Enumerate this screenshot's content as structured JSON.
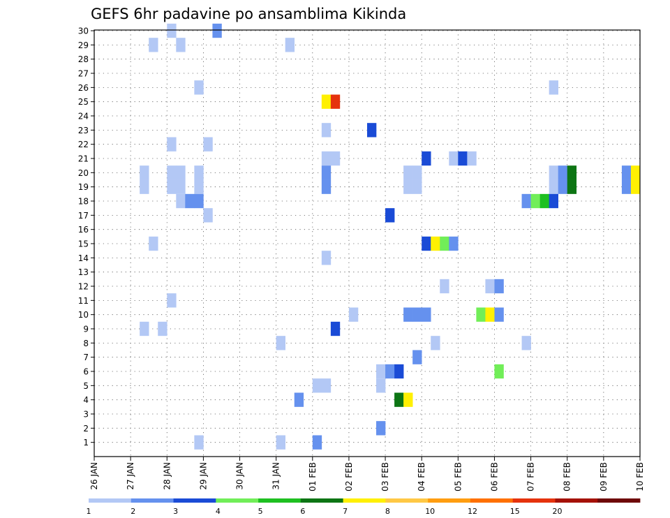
{
  "chart_data": {
    "type": "heatmap",
    "title": "GEFS 6hr padavine po ansamblima Kikinda",
    "xlabel": "",
    "ylabel": "",
    "x_ticks": [
      "26 JAN",
      "27 JAN",
      "28 JAN",
      "29 JAN",
      "30 JAN",
      "31 JAN",
      "01 FEB",
      "02 FEB",
      "03 FEB",
      "04 FEB",
      "05 FEB",
      "06 FEB",
      "07 FEB",
      "08 FEB",
      "09 FEB",
      "10 FEB"
    ],
    "y_ticks": [
      "1",
      "2",
      "3",
      "4",
      "5",
      "6",
      "7",
      "8",
      "9",
      "10",
      "11",
      "12",
      "13",
      "14",
      "15",
      "16",
      "17",
      "18",
      "19",
      "20",
      "21",
      "22",
      "23",
      "24",
      "25",
      "26",
      "27",
      "28",
      "29",
      "30"
    ],
    "x_range_days": [
      0,
      15
    ],
    "y_range": [
      0,
      30
    ],
    "grid": true,
    "color_scale": {
      "levels": [
        "1",
        "2",
        "3",
        "4",
        "5",
        "6",
        "7",
        "8",
        "10",
        "12",
        "15",
        "20"
      ],
      "colors": [
        "#b3c8f5",
        "#6591ee",
        "#1a4bd6",
        "#71ee58",
        "#1ec021",
        "#0d7514",
        "#fff002",
        "#ffc845",
        "#ff9d10",
        "#ff7000",
        "#e5320d",
        "#a51105",
        "#6e0808"
      ]
    },
    "cells": [
      {
        "t": "2-00",
        "m": 30,
        "c": 0
      },
      {
        "t": "3-06",
        "m": 30,
        "c": 1
      },
      {
        "t": "1-12",
        "m": 29,
        "c": 0
      },
      {
        "t": "2-06",
        "m": 29,
        "c": 0
      },
      {
        "t": "5-06",
        "m": 29,
        "c": 0
      },
      {
        "t": "2-18",
        "m": 26,
        "c": 0
      },
      {
        "t": "12-12",
        "m": 26,
        "c": 0
      },
      {
        "t": "6-06",
        "m": 25,
        "c": 6
      },
      {
        "t": "6-12",
        "m": 25,
        "c": 10
      },
      {
        "t": "6-06",
        "m": 23,
        "c": 0
      },
      {
        "t": "7-12",
        "m": 23,
        "c": 2
      },
      {
        "t": "2-00",
        "m": 22,
        "c": 0
      },
      {
        "t": "3-00",
        "m": 22,
        "c": 0
      },
      {
        "t": "6-06",
        "m": 21,
        "c": 0
      },
      {
        "t": "6-12",
        "m": 21,
        "c": 0
      },
      {
        "t": "9-00",
        "m": 21,
        "c": 2
      },
      {
        "t": "9-18",
        "m": 21,
        "c": 0
      },
      {
        "t": "10-00",
        "m": 21,
        "c": 2
      },
      {
        "t": "10-06",
        "m": 21,
        "c": 0
      },
      {
        "t": "1-06",
        "m": 20,
        "c": 0
      },
      {
        "t": "2-00",
        "m": 20,
        "c": 0
      },
      {
        "t": "2-06",
        "m": 20,
        "c": 0
      },
      {
        "t": "2-18",
        "m": 20,
        "c": 0
      },
      {
        "t": "6-06",
        "m": 20,
        "c": 1
      },
      {
        "t": "8-12",
        "m": 20,
        "c": 0
      },
      {
        "t": "8-18",
        "m": 20,
        "c": 0
      },
      {
        "t": "12-12",
        "m": 20,
        "c": 0
      },
      {
        "t": "12-18",
        "m": 20,
        "c": 1
      },
      {
        "t": "13-00",
        "m": 20,
        "c": 5
      },
      {
        "t": "14-12",
        "m": 20,
        "c": 1
      },
      {
        "t": "14-18",
        "m": 20,
        "c": 6
      },
      {
        "t": "1-06",
        "m": 19,
        "c": 0
      },
      {
        "t": "2-00",
        "m": 19,
        "c": 0
      },
      {
        "t": "2-06",
        "m": 19,
        "c": 0
      },
      {
        "t": "2-18",
        "m": 19,
        "c": 0
      },
      {
        "t": "6-06",
        "m": 19,
        "c": 1
      },
      {
        "t": "8-12",
        "m": 19,
        "c": 0
      },
      {
        "t": "8-18",
        "m": 19,
        "c": 0
      },
      {
        "t": "12-12",
        "m": 19,
        "c": 0
      },
      {
        "t": "12-18",
        "m": 19,
        "c": 1
      },
      {
        "t": "13-00",
        "m": 19,
        "c": 5
      },
      {
        "t": "14-12",
        "m": 19,
        "c": 1
      },
      {
        "t": "14-18",
        "m": 19,
        "c": 6
      },
      {
        "t": "2-06",
        "m": 18,
        "c": 0
      },
      {
        "t": "2-12",
        "m": 18,
        "c": 1
      },
      {
        "t": "2-18",
        "m": 18,
        "c": 1
      },
      {
        "t": "11-18",
        "m": 18,
        "c": 1
      },
      {
        "t": "12-00",
        "m": 18,
        "c": 3
      },
      {
        "t": "12-06",
        "m": 18,
        "c": 4
      },
      {
        "t": "12-12",
        "m": 18,
        "c": 2
      },
      {
        "t": "3-00",
        "m": 17,
        "c": 0
      },
      {
        "t": "8-00",
        "m": 17,
        "c": 2
      },
      {
        "t": "1-12",
        "m": 15,
        "c": 0
      },
      {
        "t": "9-00",
        "m": 15,
        "c": 2
      },
      {
        "t": "9-06",
        "m": 15,
        "c": 6
      },
      {
        "t": "9-12",
        "m": 15,
        "c": 3
      },
      {
        "t": "9-18",
        "m": 15,
        "c": 1
      },
      {
        "t": "6-06",
        "m": 14,
        "c": 0
      },
      {
        "t": "9-12",
        "m": 12,
        "c": 0
      },
      {
        "t": "10-18",
        "m": 12,
        "c": 0
      },
      {
        "t": "11-00",
        "m": 12,
        "c": 1
      },
      {
        "t": "2-00",
        "m": 11,
        "c": 0
      },
      {
        "t": "7-00",
        "m": 10,
        "c": 0
      },
      {
        "t": "8-12",
        "m": 10,
        "c": 1
      },
      {
        "t": "8-18",
        "m": 10,
        "c": 1
      },
      {
        "t": "9-00",
        "m": 10,
        "c": 1
      },
      {
        "t": "10-12",
        "m": 10,
        "c": 3
      },
      {
        "t": "10-18",
        "m": 10,
        "c": 6
      },
      {
        "t": "11-00",
        "m": 10,
        "c": 1
      },
      {
        "t": "1-06",
        "m": 9,
        "c": 0
      },
      {
        "t": "1-18",
        "m": 9,
        "c": 0
      },
      {
        "t": "6-12",
        "m": 9,
        "c": 2
      },
      {
        "t": "5-00",
        "m": 8,
        "c": 0
      },
      {
        "t": "9-06",
        "m": 8,
        "c": 0
      },
      {
        "t": "11-18",
        "m": 8,
        "c": 0
      },
      {
        "t": "8-18",
        "m": 7,
        "c": 1
      },
      {
        "t": "7-18",
        "m": 6,
        "c": 0
      },
      {
        "t": "8-00",
        "m": 6,
        "c": 1
      },
      {
        "t": "8-06",
        "m": 6,
        "c": 2
      },
      {
        "t": "11-00",
        "m": 6,
        "c": 3
      },
      {
        "t": "6-00",
        "m": 5,
        "c": 0
      },
      {
        "t": "6-06",
        "m": 5,
        "c": 0
      },
      {
        "t": "7-18",
        "m": 5,
        "c": 0
      },
      {
        "t": "5-12",
        "m": 4,
        "c": 1
      },
      {
        "t": "8-06",
        "m": 4,
        "c": 5
      },
      {
        "t": "8-12",
        "m": 4,
        "c": 6
      },
      {
        "t": "7-18",
        "m": 2,
        "c": 1
      },
      {
        "t": "2-18",
        "m": 1,
        "c": 0
      },
      {
        "t": "5-00",
        "m": 1,
        "c": 0
      },
      {
        "t": "6-00",
        "m": 1,
        "c": 1
      }
    ]
  }
}
